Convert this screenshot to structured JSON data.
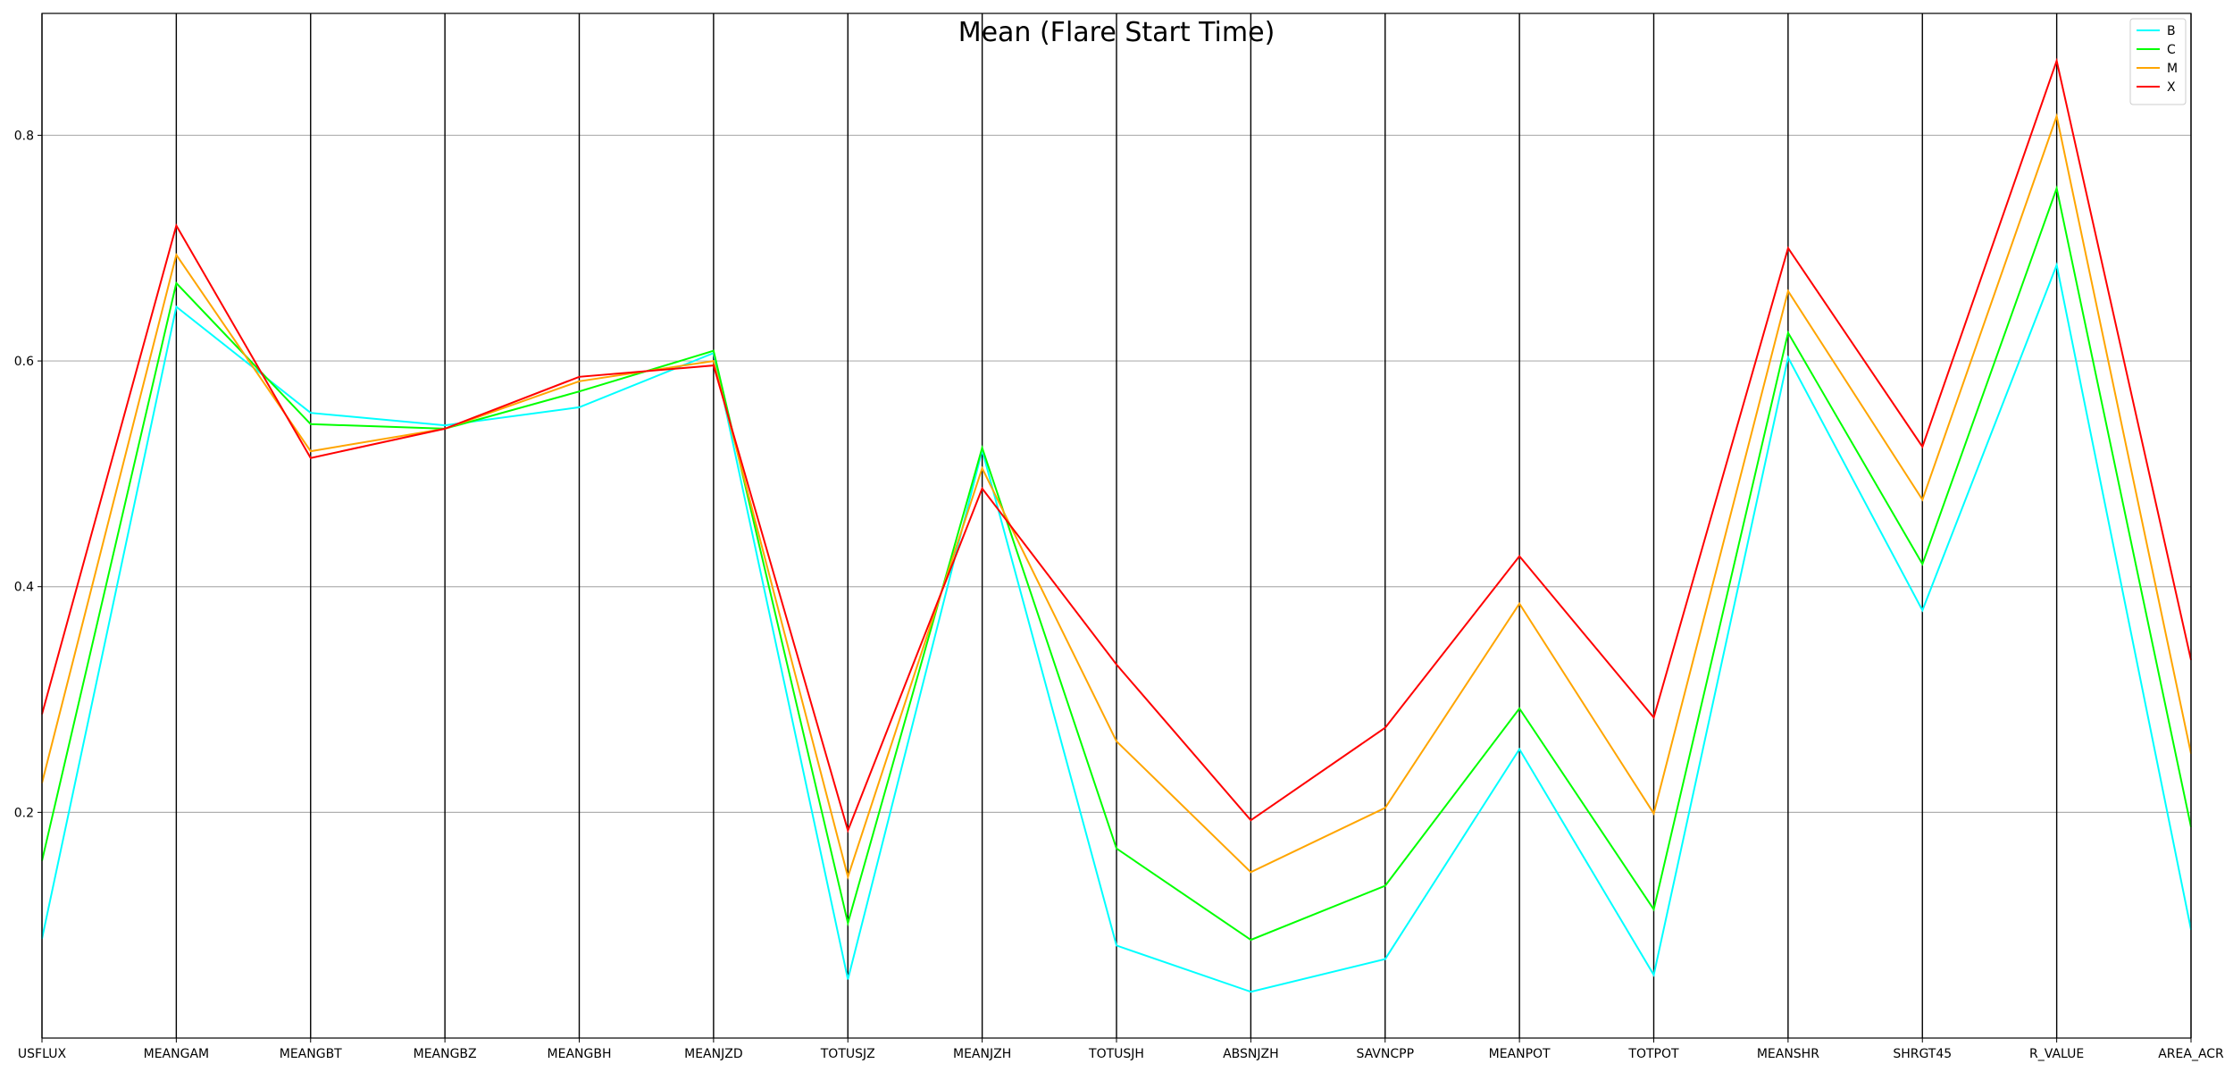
{
  "chart_data": {
    "type": "line",
    "title": "Mean (Flare Start Time)",
    "xlabel": "",
    "ylabel": "",
    "categories": [
      "USFLUX",
      "MEANGAM",
      "MEANGBT",
      "MEANGBZ",
      "MEANGBH",
      "MEANJZD",
      "TOTUSJZ",
      "MEANJZH",
      "TOTUSJH",
      "ABSNJZH",
      "SAVNCPP",
      "MEANPOT",
      "TOTPOT",
      "MEANSHR",
      "SHRGT45",
      "R_VALUE",
      "AREA_ACR"
    ],
    "ylim": [
      0.0,
      0.908
    ],
    "yticks": [
      0.2,
      0.4,
      0.6,
      0.8
    ],
    "ytick_labels": [
      "0.2",
      "0.4",
      "0.6",
      "0.8"
    ],
    "grid": "horizontal",
    "legend_position": "top-right",
    "series": [
      {
        "name": "B",
        "color": "#00ffff",
        "values": [
          0.088,
          0.648,
          0.554,
          0.543,
          0.559,
          0.607,
          0.052,
          0.521,
          0.082,
          0.041,
          0.07,
          0.256,
          0.056,
          0.603,
          0.379,
          0.685,
          0.096
        ]
      },
      {
        "name": "C",
        "color": "#00ff00",
        "values": [
          0.157,
          0.669,
          0.544,
          0.54,
          0.573,
          0.609,
          0.102,
          0.523,
          0.168,
          0.087,
          0.135,
          0.292,
          0.114,
          0.625,
          0.42,
          0.753,
          0.187
        ]
      },
      {
        "name": "M",
        "color": "#ffa500",
        "values": [
          0.226,
          0.694,
          0.52,
          0.54,
          0.582,
          0.6,
          0.143,
          0.505,
          0.263,
          0.147,
          0.204,
          0.385,
          0.199,
          0.662,
          0.477,
          0.817,
          0.252
        ]
      },
      {
        "name": "X",
        "color": "#ff0000",
        "values": [
          0.287,
          0.72,
          0.514,
          0.54,
          0.586,
          0.596,
          0.184,
          0.487,
          0.331,
          0.193,
          0.275,
          0.427,
          0.284,
          0.7,
          0.524,
          0.866,
          0.335
        ]
      }
    ]
  }
}
